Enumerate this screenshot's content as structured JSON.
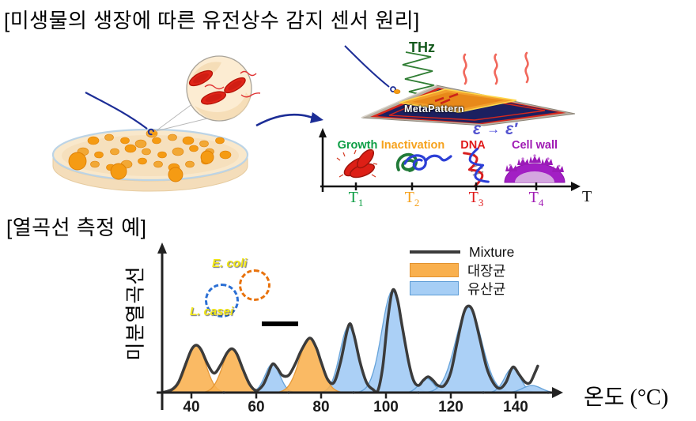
{
  "page": {
    "title": "[미생물의 생장에 따른 유전상수 감지 센서 원리]",
    "section2_title": "[열곡선 측정 예]"
  },
  "principle": {
    "thz_label": "THz",
    "chip_label": "MetaPattern",
    "epsilon_before": "ε",
    "epsilon_arrow": "→",
    "epsilon_after": "ε′",
    "stages": [
      {
        "label": "Growth",
        "color": "#0e9e45",
        "icon": "bacteria-cluster-icon",
        "tick_base": "T",
        "tick_sub": "1"
      },
      {
        "label": "Inactivation",
        "color": "#f6a21d",
        "icon": "denatured-protein-icon",
        "tick_base": "T",
        "tick_sub": "2"
      },
      {
        "label": "DNA",
        "color": "#e01b1b",
        "icon": "dna-helix-icon",
        "tick_base": "T",
        "tick_sub": "3"
      },
      {
        "label": "Cell wall",
        "color": "#a01bb4",
        "icon": "cell-wall-icon",
        "tick_base": "T",
        "tick_sub": "4"
      }
    ],
    "axis_end_label": "T"
  },
  "chart_data": {
    "type": "area",
    "title": "",
    "xlabel": "온도 (°C)",
    "ylabel": "미분열곡선",
    "x_ticks": [
      40,
      60,
      80,
      100,
      120,
      140
    ],
    "x_minor_ticks": [
      50,
      70,
      90,
      110,
      130,
      150
    ],
    "x_range": [
      31,
      157
    ],
    "y_range": [
      0,
      1.1
    ],
    "grid": false,
    "legend_position": "top-right",
    "legend": [
      {
        "label": "Mixture",
        "type": "line",
        "color": "#3b3b3b"
      },
      {
        "label": "대장균",
        "type": "area",
        "fill": "#f9b04e",
        "edge": "#e2922f"
      },
      {
        "label": "유산균",
        "type": "area",
        "fill": "#a6cef5",
        "edge": "#5b9bd5"
      }
    ],
    "series": [
      {
        "name": "대장균",
        "fill": "#f9b04e",
        "edge": "#e2922f",
        "opacity": 0.88,
        "peaks": [
          {
            "center": 41.5,
            "height": 0.465,
            "sigma": 2.9
          },
          {
            "center": 52.5,
            "height": 0.43,
            "sigma": 2.9
          },
          {
            "center": 76.5,
            "height": 0.535,
            "sigma": 3.2
          }
        ]
      },
      {
        "name": "유산균",
        "fill": "#a6cef5",
        "edge": "#5b9bd5",
        "opacity": 0.95,
        "peaks": [
          {
            "center": 65,
            "height": 0.28,
            "sigma": 2.3
          },
          {
            "center": 88.5,
            "height": 0.65,
            "sigma": 2.7
          },
          {
            "center": 102,
            "height": 1.0,
            "sigma": 3.3
          },
          {
            "center": 112.5,
            "height": 0.14,
            "sigma": 2.2
          },
          {
            "center": 125.5,
            "height": 0.84,
            "sigma": 4.0
          },
          {
            "center": 139,
            "height": 0.24,
            "sigma": 2.4
          },
          {
            "center": 145,
            "height": 0.07,
            "sigma": 2.8
          }
        ]
      }
    ],
    "mixture": {
      "name": "Mixture",
      "color": "#3b3b3b",
      "points": [
        [
          31,
          0
        ],
        [
          34,
          0.03
        ],
        [
          36,
          0.1
        ],
        [
          38,
          0.26
        ],
        [
          40,
          0.42
        ],
        [
          41.5,
          0.465
        ],
        [
          43,
          0.42
        ],
        [
          45,
          0.28
        ],
        [
          47,
          0.19
        ],
        [
          49,
          0.27
        ],
        [
          51,
          0.39
        ],
        [
          52.5,
          0.43
        ],
        [
          54,
          0.38
        ],
        [
          56,
          0.22
        ],
        [
          58,
          0.08
        ],
        [
          60,
          0.02
        ],
        [
          62,
          0.07
        ],
        [
          63.5,
          0.17
        ],
        [
          65,
          0.28
        ],
        [
          66.5,
          0.24
        ],
        [
          68,
          0.17
        ],
        [
          70,
          0.17
        ],
        [
          72,
          0.28
        ],
        [
          74,
          0.42
        ],
        [
          76.5,
          0.535
        ],
        [
          78.5,
          0.44
        ],
        [
          80,
          0.3
        ],
        [
          82,
          0.13
        ],
        [
          84,
          0.1
        ],
        [
          86,
          0.3
        ],
        [
          88.5,
          0.66
        ],
        [
          90,
          0.58
        ],
        [
          92,
          0.3
        ],
        [
          94,
          0.1
        ],
        [
          96,
          0.03
        ],
        [
          97.5,
          0.02
        ],
        [
          99,
          0.25
        ],
        [
          100.5,
          0.7
        ],
        [
          102,
          1
        ],
        [
          103.5,
          0.92
        ],
        [
          105,
          0.65
        ],
        [
          107,
          0.3
        ],
        [
          108.5,
          0.12
        ],
        [
          110,
          0.07
        ],
        [
          111.5,
          0.12
        ],
        [
          113,
          0.155
        ],
        [
          114.5,
          0.12
        ],
        [
          116,
          0.07
        ],
        [
          118,
          0.07
        ],
        [
          120,
          0.2
        ],
        [
          122,
          0.5
        ],
        [
          124,
          0.78
        ],
        [
          125.5,
          0.85
        ],
        [
          127,
          0.78
        ],
        [
          129,
          0.52
        ],
        [
          131,
          0.25
        ],
        [
          133,
          0.1
        ],
        [
          135,
          0.04
        ],
        [
          137,
          0.1
        ],
        [
          138.5,
          0.22
        ],
        [
          139.5,
          0.25
        ],
        [
          141,
          0.18
        ],
        [
          143,
          0.1
        ],
        [
          144.5,
          0.1
        ],
        [
          146,
          0.2
        ],
        [
          146.8,
          0.26
        ]
      ]
    },
    "inset": {
      "labels": [
        {
          "text": "E. coli",
          "color": "#f2e718",
          "circle_color": "#e8720c"
        },
        {
          "text": "L. casei",
          "color": "#f2e718",
          "circle_color": "#2b6fd4"
        }
      ],
      "scale_bar": true
    }
  },
  "colors": {
    "thz_green": "#14591d",
    "epsilon_blue": "#5353cf",
    "needle_blue": "#1c2d96",
    "chip_navy": "#1c2060",
    "chip_red": "#d6281c",
    "chip_orange": "#f2a02c",
    "colony_orange": "#f59b13",
    "bacteria_red": "#e02418",
    "mixture_line": "#3b3b3b"
  }
}
